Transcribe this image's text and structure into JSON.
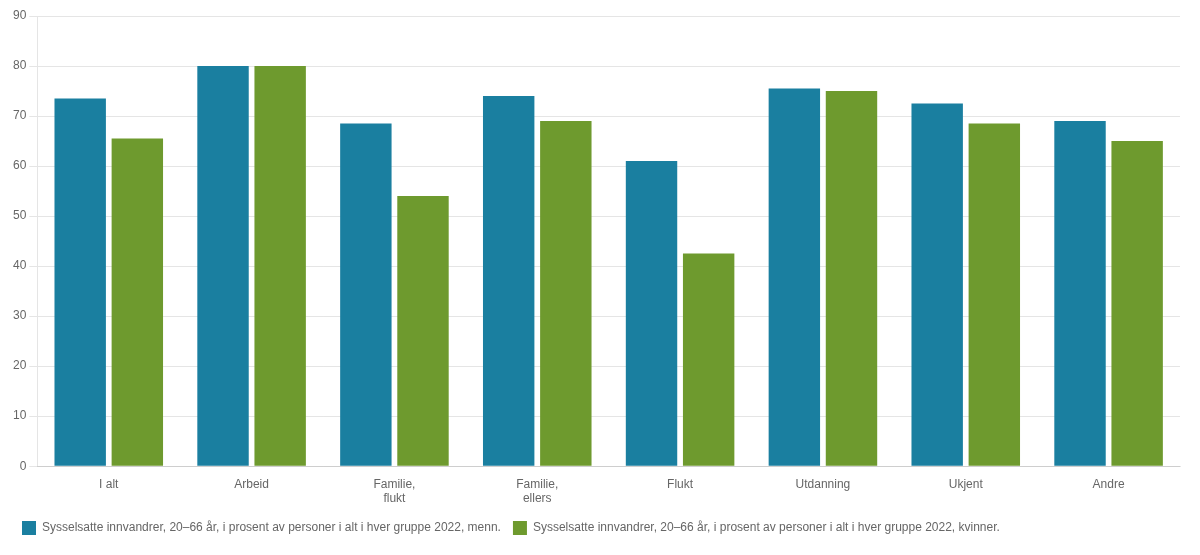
{
  "chart_data": {
    "type": "bar",
    "categories": [
      "I alt",
      "Arbeid",
      "Familie,\nflukt",
      "Familie,\nellers",
      "Flukt",
      "Utdanning",
      "Ukjent",
      "Andre"
    ],
    "series": [
      {
        "name": "Sysselsatte innvandrer, 20–66 år, i prosent av personer i alt i hver gruppe 2022, menn.",
        "color": "#1a7fa0",
        "values": [
          73.5,
          80,
          68.5,
          74,
          61,
          75.5,
          72.5,
          69
        ]
      },
      {
        "name": "Sysselsatte innvandrer, 20–66 år, i prosent av personer i alt i hver gruppe 2022, kvinner.",
        "color": "#6e9a2e",
        "values": [
          65.5,
          80,
          54,
          69,
          42.5,
          75,
          68.5,
          65
        ]
      }
    ],
    "ylim": [
      0,
      90
    ],
    "yticks": [
      0,
      10,
      20,
      30,
      40,
      50,
      60,
      70,
      80,
      90
    ],
    "grid": true,
    "legend": "lower left"
  }
}
